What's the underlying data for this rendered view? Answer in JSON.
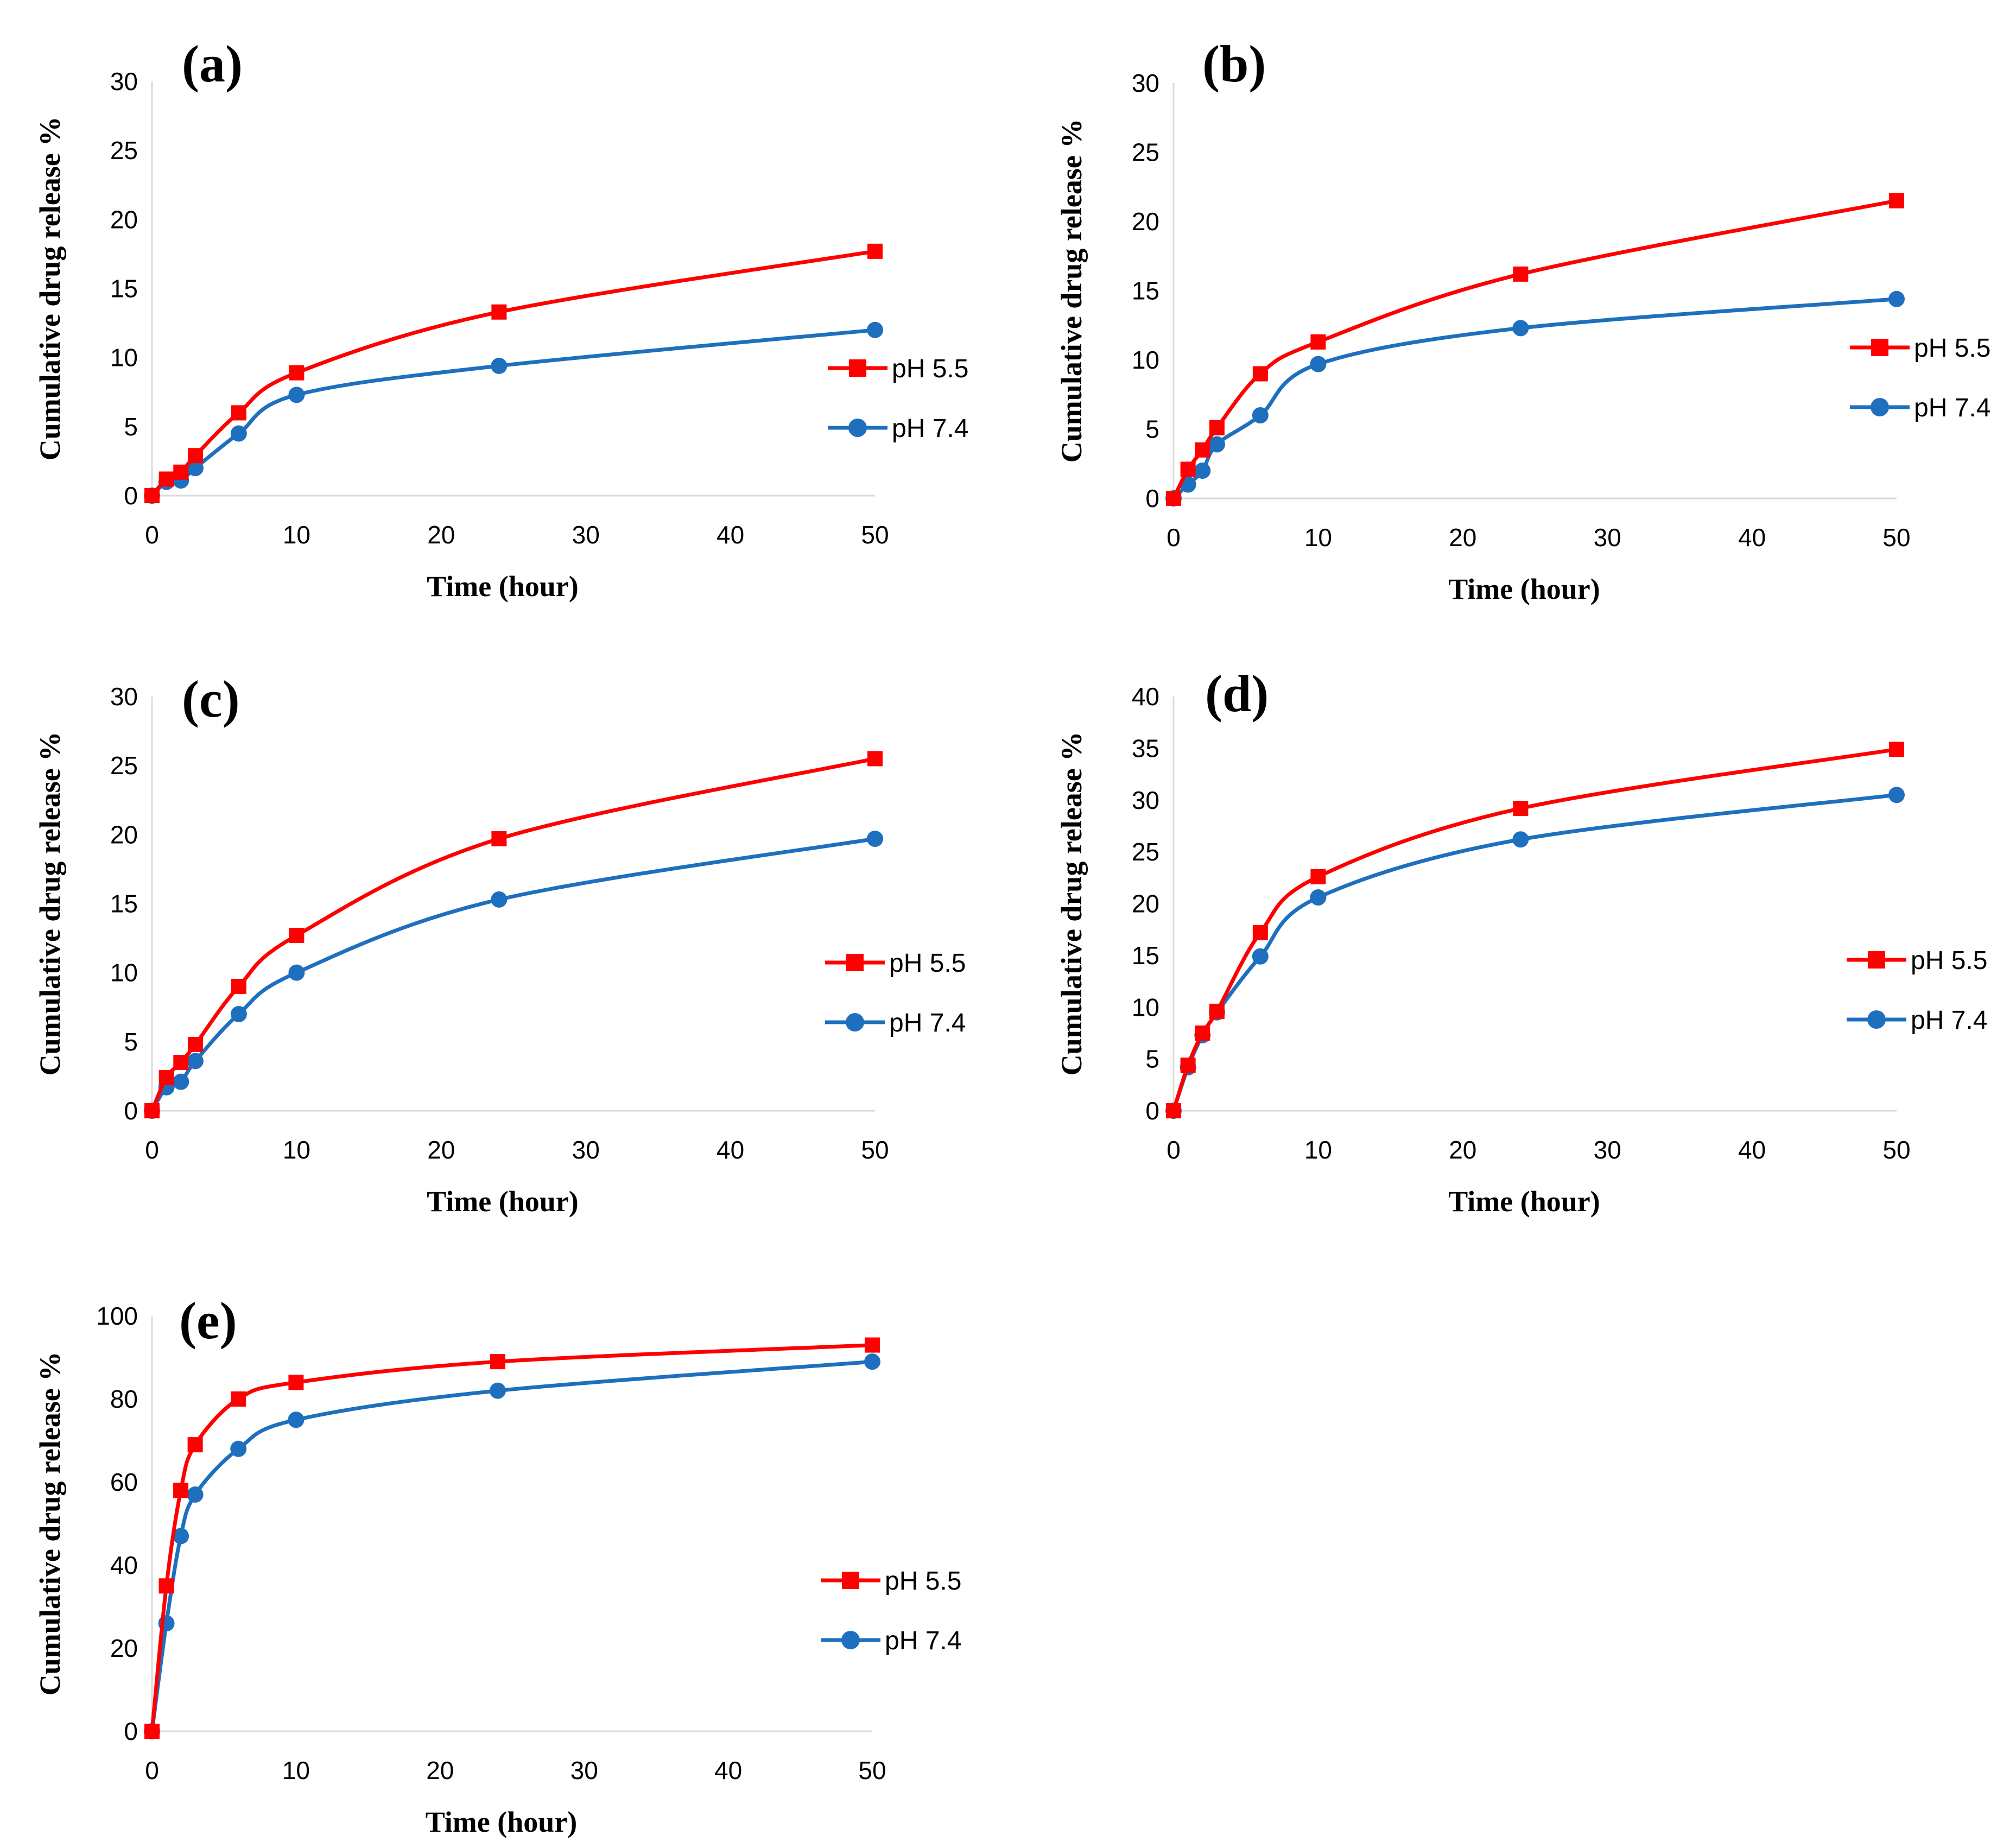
{
  "colors": {
    "ph55": "#ff0000",
    "ph74": "#1f6fbf"
  },
  "chart_data": [
    {
      "type": "line",
      "panel_label": "(a)",
      "xlabel": "Time (hour)",
      "ylabel": "Cumulative drug release %",
      "xlim": [
        0,
        50
      ],
      "ylim": [
        0,
        30
      ],
      "xticks": [
        0,
        10,
        20,
        30,
        40,
        50
      ],
      "yticks": [
        0,
        5,
        10,
        15,
        20,
        25,
        30
      ],
      "x": [
        0,
        1,
        2,
        3,
        6,
        10,
        24,
        50
      ],
      "series": [
        {
          "name": "pH 5.5",
          "marker": "square",
          "values": [
            0,
            1.2,
            1.7,
            2.9,
            6.0,
            8.9,
            13.3,
            17.7
          ]
        },
        {
          "name": "pH 7.4",
          "marker": "circle",
          "values": [
            0,
            1.0,
            1.1,
            2.0,
            4.5,
            7.3,
            9.4,
            12.0
          ]
        }
      ],
      "legend": "right"
    },
    {
      "type": "line",
      "panel_label": "(b)",
      "xlabel": "Time (hour)",
      "ylabel": "Cumulative drug release %",
      "xlim": [
        0,
        50
      ],
      "ylim": [
        0,
        30
      ],
      "xticks": [
        0,
        10,
        20,
        30,
        40,
        50
      ],
      "yticks": [
        0,
        5,
        10,
        15,
        20,
        25,
        30
      ],
      "x": [
        0,
        1,
        2,
        3,
        6,
        10,
        24,
        50
      ],
      "series": [
        {
          "name": "pH 5.5",
          "marker": "square",
          "values": [
            0,
            2.1,
            3.5,
            5.1,
            9.0,
            11.3,
            16.2,
            21.5
          ]
        },
        {
          "name": "pH 7.4",
          "marker": "circle",
          "values": [
            0,
            1.0,
            2.0,
            3.9,
            6.0,
            9.7,
            12.3,
            14.4
          ]
        }
      ],
      "legend": "right"
    },
    {
      "type": "line",
      "panel_label": "(c)",
      "xlabel": "Time (hour)",
      "ylabel": "Cumulative drug release %",
      "xlim": [
        0,
        50
      ],
      "ylim": [
        0,
        30
      ],
      "xticks": [
        0,
        10,
        20,
        30,
        40,
        50
      ],
      "yticks": [
        0,
        5,
        10,
        15,
        20,
        25,
        30
      ],
      "x": [
        0,
        1,
        2,
        3,
        6,
        10,
        24,
        50
      ],
      "series": [
        {
          "name": "pH 5.5",
          "marker": "square",
          "values": [
            0,
            2.4,
            3.5,
            4.8,
            9.0,
            12.7,
            19.7,
            25.5
          ]
        },
        {
          "name": "pH 7.4",
          "marker": "circle",
          "values": [
            0,
            1.7,
            2.1,
            3.6,
            7.0,
            10.0,
            15.3,
            19.7
          ]
        }
      ],
      "legend": "right"
    },
    {
      "type": "line",
      "panel_label": "(d)",
      "xlabel": "Time (hour)",
      "ylabel": "Cumulative drug release %",
      "xlim": [
        0,
        50
      ],
      "ylim": [
        0,
        40
      ],
      "xticks": [
        0,
        10,
        20,
        30,
        40,
        50
      ],
      "yticks": [
        0,
        5,
        10,
        15,
        20,
        25,
        30,
        35,
        40
      ],
      "x": [
        0,
        1,
        2,
        3,
        6,
        10,
        24,
        50
      ],
      "series": [
        {
          "name": "pH 5.5",
          "marker": "square",
          "values": [
            0,
            4.4,
            7.5,
            9.6,
            17.2,
            22.6,
            29.2,
            34.9
          ]
        },
        {
          "name": "pH 7.4",
          "marker": "circle",
          "values": [
            0,
            4.2,
            7.3,
            9.5,
            14.9,
            20.6,
            26.2,
            30.5
          ]
        }
      ],
      "legend": "right"
    },
    {
      "type": "line",
      "panel_label": "(e)",
      "xlabel": "Time (hour)",
      "ylabel": "Cumulative drug release %",
      "xlim": [
        0,
        50
      ],
      "ylim": [
        0,
        100
      ],
      "xticks": [
        0,
        10,
        20,
        30,
        40,
        50
      ],
      "yticks": [
        0,
        20,
        40,
        60,
        80,
        100
      ],
      "x": [
        0,
        1,
        2,
        3,
        6,
        10,
        24,
        50
      ],
      "series": [
        {
          "name": "pH 5.5",
          "marker": "square",
          "values": [
            0,
            35,
            58,
            69,
            80,
            84,
            89,
            93
          ]
        },
        {
          "name": "pH 7.4",
          "marker": "circle",
          "values": [
            0,
            26,
            47,
            57,
            68,
            75,
            82,
            89
          ]
        }
      ],
      "legend": "right"
    }
  ]
}
